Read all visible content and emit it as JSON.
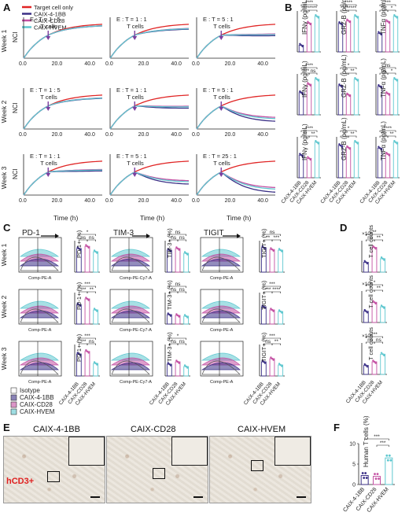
{
  "panels": {
    "A": "A",
    "B": "B",
    "C": "C",
    "D": "D",
    "E": "E",
    "F": "F"
  },
  "colors": {
    "target": "#e02424",
    "bb": "#3a2f86",
    "cd28": "#c34fa2",
    "hvem": "#5ec7cf",
    "isotope": "#9a9a9a"
  },
  "panelA": {
    "legend": [
      "Target cell only",
      "CAIX-4-1BB",
      "CAIX-CD28",
      "CAIX-HVEM"
    ],
    "row_labels": [
      "Week 1",
      "Week 2",
      "Week 3"
    ],
    "ylabel": "NCI",
    "xlabel": "Time (h)",
    "xticks": [
      "0.0",
      "20.0",
      "40.0"
    ],
    "arrow_label": "T cells",
    "ratios": [
      [
        "E : T = 1 : 5",
        "E : T = 1 : 1",
        "E : T = 5 : 1"
      ],
      [
        "E : T = 1 : 5",
        "E : T = 1 : 1",
        "E : T = 5 : 1"
      ],
      [
        "E : T = 1 : 1",
        "E : T = 5 : 1",
        "E : T = 25 : 1"
      ]
    ]
  },
  "panelB": {
    "ylabels": [
      "IFNγ (pg/mL)",
      "GRZ-B (pg/mL)",
      "TNFα (pg/mL)"
    ],
    "categories": [
      "CAIX-4-1BB",
      "CAIX-CD28",
      "CAIX-HVEM"
    ],
    "values": [
      [
        [
          35,
          150,
          185
        ],
        [
          160,
          175,
          200
        ],
        [
          55,
          90,
          105
        ]
      ],
      [
        [
          45,
          62,
          72
        ],
        [
          160,
          110,
          195
        ],
        [
          40,
          30,
          50
        ]
      ],
      [
        [
          35,
          30,
          55
        ],
        [
          150,
          140,
          165
        ],
        [
          40,
          32,
          48
        ]
      ]
    ],
    "sig": [
      [
        [
          "****",
          "****",
          "****"
        ],
        [
          "****",
          "****",
          "****"
        ],
        [
          "***",
          "*",
          "***"
        ]
      ],
      [
        [
          "****",
          "ns",
          "****"
        ],
        [
          "*",
          "**",
          "*"
        ],
        [
          "ns",
          "*",
          "ns"
        ]
      ],
      [
        [
          "**",
          "**",
          "****"
        ],
        [
          "*",
          "**",
          "*"
        ],
        [
          "***",
          "**",
          "****"
        ]
      ]
    ]
  },
  "panelC": {
    "markers": [
      "PD-1",
      "TIM-3",
      "TIGIT"
    ],
    "xaxis": [
      "Comp-PE-A",
      "Comp-PE-Cy7-A",
      "Comp-PE-A"
    ],
    "row_labels": [
      "Week 1",
      "Week 2",
      "Week 3"
    ],
    "ylabels": [
      "PD-1+ (%)",
      "TIM-3+ (%)",
      "TIGIT+ (%)"
    ],
    "categories": [
      "CAIX-4-1BB",
      "CAIX-CD28",
      "CAIX-HVEM"
    ],
    "legend": [
      "Isotype",
      "CAIX-4-1BB",
      "CAIX-CD28",
      "CAIX-HVEM"
    ],
    "values": [
      [
        [
          75,
          82,
          65
        ],
        [
          28,
          30,
          24
        ],
        [
          78,
          72,
          70
        ]
      ],
      [
        [
          62,
          80,
          45
        ],
        [
          12,
          11,
          10
        ],
        [
          55,
          45,
          40
        ]
      ],
      [
        [
          70,
          78,
          40
        ],
        [
          15,
          18,
          12
        ],
        [
          45,
          55,
          35
        ]
      ]
    ],
    "sig": [
      [
        [
          "ns",
          "ns",
          "*"
        ],
        [
          "ns",
          "ns",
          "ns"
        ],
        [
          "**",
          "***",
          "ns"
        ]
      ],
      [
        [
          "***",
          "**",
          "***"
        ],
        [
          "ns",
          "ns",
          "ns"
        ],
        [
          "***",
          "****",
          "***"
        ]
      ],
      [
        [
          "***",
          "ns",
          "***"
        ],
        [
          "ns",
          "ns",
          "*"
        ],
        [
          "ns",
          "**",
          "***"
        ]
      ]
    ]
  },
  "panelD": {
    "ylabel": "T cell counts",
    "exponent": "×10⁶",
    "categories": [
      "CAIX-4-1BB",
      "CAIX-CD28",
      "CAIX-HVEM"
    ],
    "values": [
      [
        2.2,
        5.5,
        3.0
      ],
      [
        2.5,
        4.5,
        3.5
      ],
      [
        2.0,
        2.8,
        4.5
      ]
    ],
    "sig": [
      [
        "ns",
        "**",
        "**"
      ],
      [
        "*",
        "**",
        "*"
      ],
      [
        "ns",
        "ns",
        "***"
      ]
    ]
  },
  "panelE": {
    "titles": [
      "CAIX-4-1BB",
      "CAIX-CD28",
      "CAIX-HVEM"
    ],
    "stain_label": "hCD3+"
  },
  "panelF": {
    "ylabel": "Human T cells (%)",
    "categories": [
      "CAIX-4-1BB",
      "CAIX-CD28",
      "CAIX-HVEM"
    ],
    "values": [
      2.2,
      2.0,
      6.5
    ],
    "ylim": [
      0,
      10
    ],
    "yticks": [
      "0",
      "5",
      "10"
    ],
    "sig": [
      "***",
      "***"
    ]
  }
}
